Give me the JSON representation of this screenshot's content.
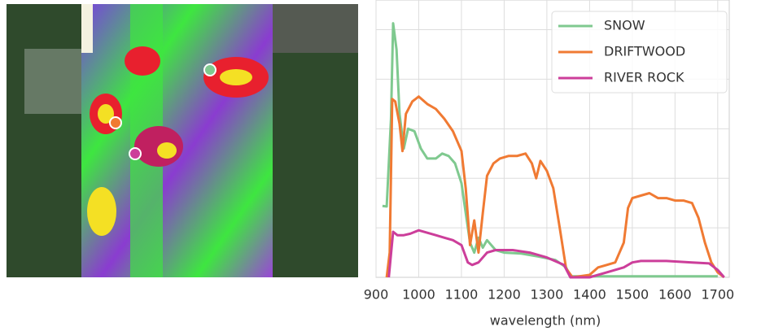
{
  "chart_data": {
    "type": "line",
    "xlabel": "wavelength (nm)",
    "xlim": [
      900,
      1727
    ],
    "xticks": [
      900,
      1000,
      1100,
      1200,
      1300,
      1400,
      1500,
      1600,
      1700
    ],
    "ylim": [
      0,
      5.6
    ],
    "yticks": [
      1,
      2,
      3,
      4,
      5
    ],
    "grid": true,
    "legend": "upper right",
    "series": [
      {
        "name": "SNOW",
        "color": "#7fc98f",
        "x": [
          915,
          925,
          935,
          940,
          948,
          955,
          965,
          975,
          990,
          1005,
          1020,
          1040,
          1055,
          1070,
          1085,
          1100,
          1110,
          1120,
          1130,
          1140,
          1150,
          1160,
          1180,
          1200,
          1240,
          1280,
          1320,
          1345,
          1355,
          1700
        ],
        "values": [
          1.44,
          1.43,
          3.2,
          5.13,
          4.6,
          3.3,
          2.6,
          3.0,
          2.95,
          2.6,
          2.4,
          2.4,
          2.5,
          2.45,
          2.3,
          1.9,
          1.3,
          0.7,
          0.5,
          0.8,
          0.6,
          0.75,
          0.55,
          0.5,
          0.48,
          0.42,
          0.35,
          0.2,
          0.02,
          0.02
        ]
      },
      {
        "name": "DRIFTWOOD",
        "color": "#f07a33",
        "x": [
          925,
          932,
          938,
          945,
          955,
          962,
          970,
          985,
          1000,
          1020,
          1040,
          1060,
          1080,
          1100,
          1110,
          1120,
          1130,
          1140,
          1150,
          1160,
          1175,
          1190,
          1210,
          1230,
          1250,
          1265,
          1275,
          1285,
          1300,
          1315,
          1330,
          1345,
          1360,
          1400,
          1420,
          1440,
          1460,
          1480,
          1490,
          1500,
          1520,
          1540,
          1560,
          1580,
          1600,
          1620,
          1640,
          1655,
          1670,
          1685,
          1700,
          1715
        ],
        "values": [
          0,
          0.5,
          3.6,
          3.55,
          3.1,
          2.55,
          3.3,
          3.55,
          3.65,
          3.5,
          3.4,
          3.2,
          2.95,
          2.55,
          1.8,
          0.65,
          1.15,
          0.5,
          1.3,
          2.05,
          2.3,
          2.4,
          2.45,
          2.45,
          2.5,
          2.3,
          2.0,
          2.35,
          2.15,
          1.8,
          1.0,
          0.18,
          0,
          0.05,
          0.2,
          0.25,
          0.3,
          0.7,
          1.4,
          1.6,
          1.65,
          1.7,
          1.6,
          1.6,
          1.55,
          1.55,
          1.5,
          1.2,
          0.7,
          0.3,
          0.1,
          0
        ]
      },
      {
        "name": "RIVER ROCK",
        "color": "#cc3e9a",
        "x": [
          930,
          940,
          950,
          965,
          980,
          1000,
          1020,
          1040,
          1060,
          1080,
          1100,
          1115,
          1125,
          1140,
          1160,
          1180,
          1220,
          1260,
          1300,
          1340,
          1355,
          1400,
          1440,
          1480,
          1500,
          1520,
          1580,
          1640,
          1680,
          1700,
          1715
        ],
        "values": [
          0,
          0.92,
          0.85,
          0.85,
          0.88,
          0.95,
          0.9,
          0.85,
          0.8,
          0.75,
          0.65,
          0.3,
          0.25,
          0.3,
          0.5,
          0.55,
          0.55,
          0.5,
          0.4,
          0.25,
          0,
          0,
          0.1,
          0.2,
          0.3,
          0.33,
          0.33,
          0.3,
          0.28,
          0.15,
          0
        ]
      }
    ]
  }
}
